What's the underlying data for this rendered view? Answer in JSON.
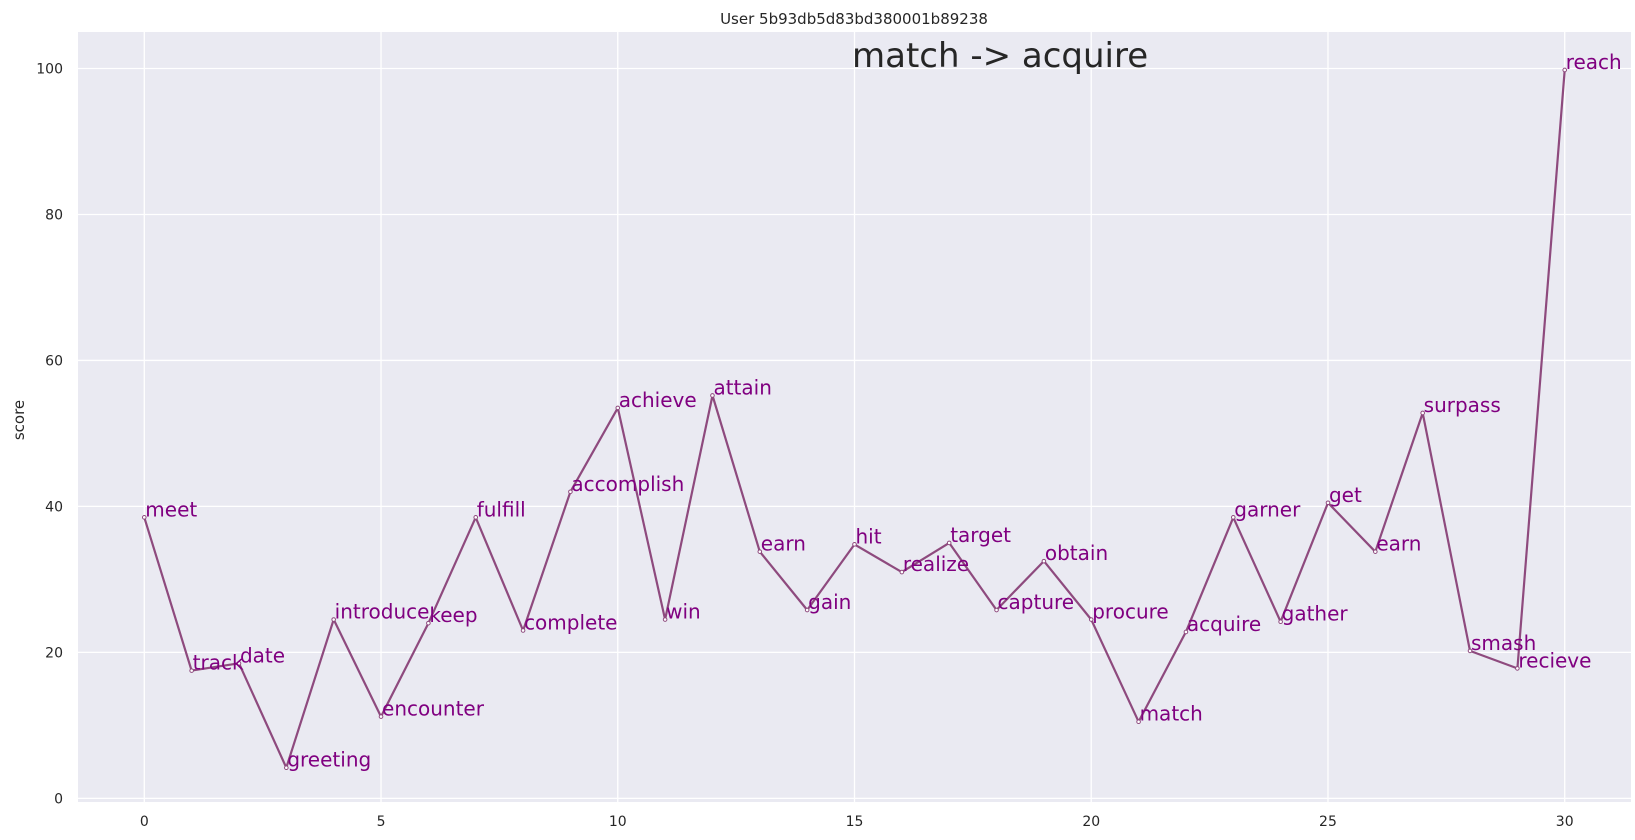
{
  "chart_data": {
    "type": "line",
    "title": "User 5b93db5d83bd380001b89238",
    "annotation": "match -> acquire",
    "xlabel": "",
    "ylabel": "score",
    "xlim": [
      -1.4,
      31.4
    ],
    "ylim": [
      -0.5,
      105
    ],
    "xticks": [
      0,
      5,
      10,
      15,
      20,
      25,
      30
    ],
    "yticks": [
      0,
      20,
      40,
      60,
      80,
      100
    ],
    "grid": true,
    "line_color": "#8e4a7e",
    "label_color": "#800080",
    "background": "#eaeaf2",
    "x": [
      0,
      1,
      2,
      3,
      4,
      5,
      6,
      7,
      8,
      9,
      10,
      11,
      12,
      13,
      14,
      15,
      16,
      17,
      18,
      19,
      20,
      21,
      22,
      23,
      24,
      25,
      26,
      27,
      28,
      29,
      30
    ],
    "y": [
      38.5,
      17.5,
      18.5,
      4.2,
      24.5,
      11.2,
      24,
      38.5,
      23,
      42,
      53.5,
      24.5,
      55.2,
      33.8,
      25.8,
      34.8,
      31,
      35,
      25.8,
      32.5,
      24.5,
      10.5,
      22.8,
      38.5,
      24.2,
      40.5,
      33.8,
      52.8,
      20.2,
      17.8,
      99.8
    ],
    "labels": [
      "meet",
      "track",
      "date",
      "greeting",
      "introduce",
      "encounter",
      "keep",
      "fulfill",
      "complete",
      "accomplish",
      "achieve",
      "win",
      "attain",
      "earn",
      "gain",
      "hit",
      "realize",
      "target",
      "capture",
      "obtain",
      "procure",
      "match",
      "acquire",
      "garner",
      "gather",
      "get",
      "earn",
      "surpass",
      "smash",
      "recieve",
      "reach"
    ]
  }
}
